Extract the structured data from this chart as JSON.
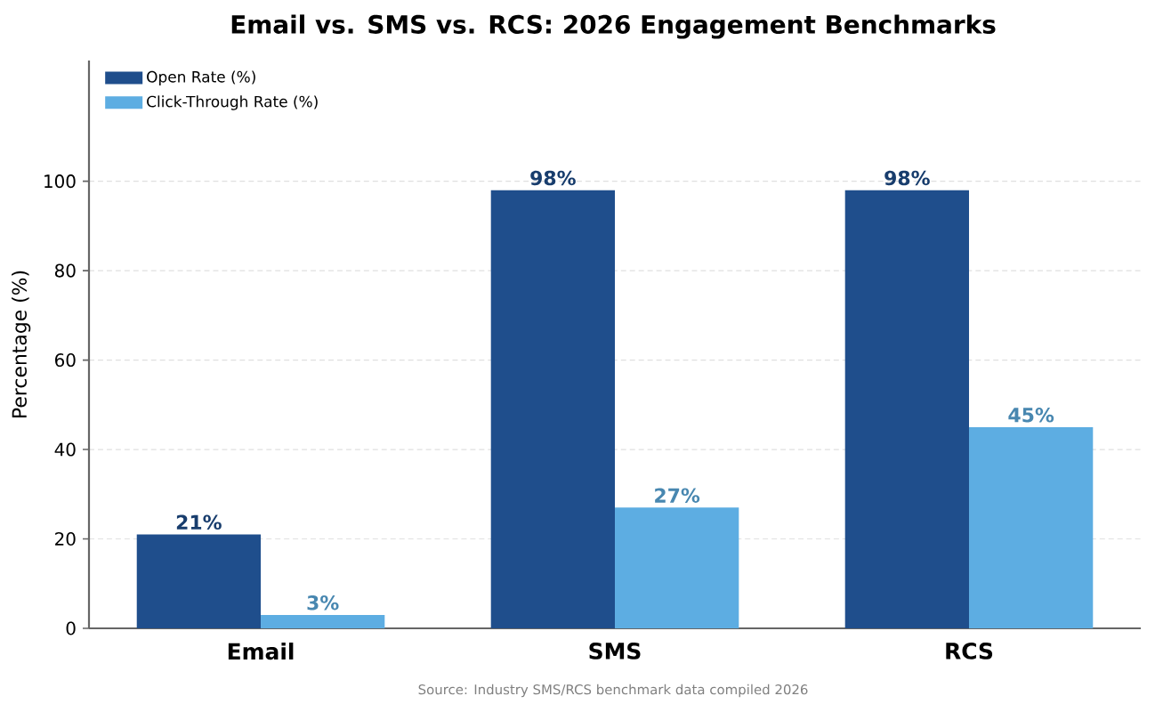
{
  "chart_data": {
    "type": "bar",
    "title": "Email vs. SMS vs. RCS: 2026 Engagement Benchmarks",
    "ylabel": "Percentage (%)",
    "categories": [
      "Email",
      "SMS",
      "RCS"
    ],
    "series": [
      {
        "name": "Open Rate (%)",
        "color": "#1f4e8c",
        "values": [
          21,
          98,
          98
        ],
        "value_labels": [
          "21%",
          "98%",
          "98%"
        ]
      },
      {
        "name": "Click-Through Rate (%)",
        "color": "#5dade2",
        "values": [
          3,
          27,
          45
        ],
        "value_labels": [
          "3%",
          "27%",
          "45%"
        ]
      }
    ],
    "ylim": [
      0,
      127
    ],
    "yticks": [
      0,
      20,
      40,
      60,
      80,
      100
    ],
    "grid": "y",
    "legend": "top left",
    "annotations": [
      "Source: Industry SMS/RCS benchmark data compiled 2026"
    ]
  }
}
